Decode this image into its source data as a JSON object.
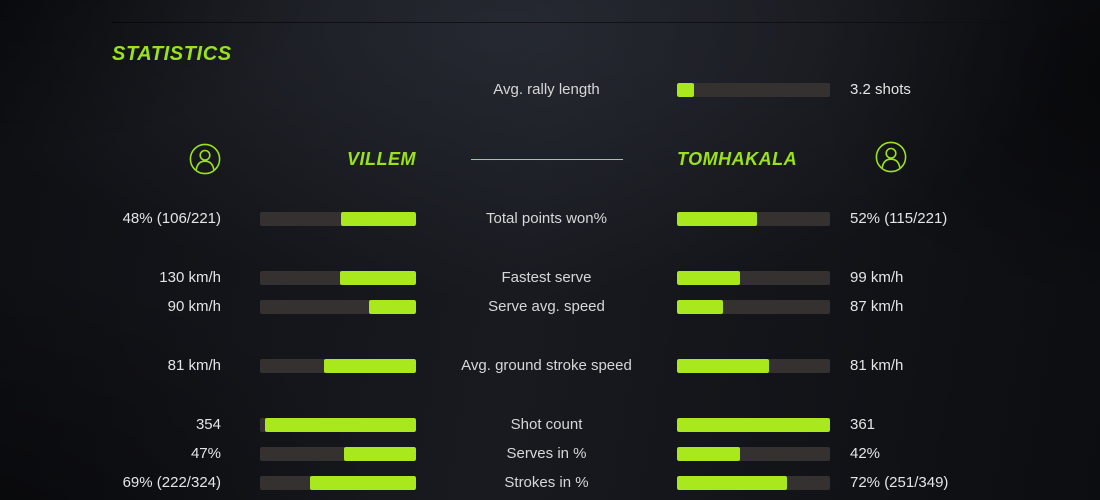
{
  "title": "STATISTICS",
  "colors": {
    "accent_text": "#9ae21a",
    "bar_fill": "#a9e81c",
    "bar_track": "#343130",
    "label_text": "#d6d7d8",
    "value_text": "#e4e5e6"
  },
  "rally": {
    "label": "Avg. rally length",
    "value": "3.2 shots",
    "fill_pct": 11
  },
  "players": {
    "left": {
      "name": "VILLEM",
      "icon": "user-avatar-icon"
    },
    "right": {
      "name": "TOMHAKALA",
      "icon": "user-avatar-icon"
    }
  },
  "stats": [
    {
      "label": "Total points won%",
      "left_value": "48% (106/221)",
      "right_value": "52% (115/221)",
      "left_fill_pct": 48,
      "right_fill_pct": 52,
      "gap_before": false
    },
    {
      "label": "Fastest serve",
      "left_value": "130 km/h",
      "right_value": "99 km/h",
      "left_fill_pct": 49,
      "right_fill_pct": 41,
      "gap_before": true
    },
    {
      "label": "Serve avg. speed",
      "left_value": "90 km/h",
      "right_value": "87 km/h",
      "left_fill_pct": 30,
      "right_fill_pct": 30,
      "gap_before": false
    },
    {
      "label": "Avg. ground stroke speed",
      "left_value": "81 km/h",
      "right_value": "81 km/h",
      "left_fill_pct": 59,
      "right_fill_pct": 60,
      "gap_before": true
    },
    {
      "label": "Shot count",
      "left_value": "354",
      "right_value": "361",
      "left_fill_pct": 97,
      "right_fill_pct": 100,
      "gap_before": true
    },
    {
      "label": "Serves in %",
      "left_value": "47%",
      "right_value": "42%",
      "left_fill_pct": 46,
      "right_fill_pct": 41,
      "gap_before": false
    },
    {
      "label": "Strokes in %",
      "left_value": "69% (222/324)",
      "right_value": "72% (251/349)",
      "left_fill_pct": 68,
      "right_fill_pct": 72,
      "gap_before": false
    }
  ],
  "chart_data": {
    "type": "bar",
    "title": "STATISTICS",
    "categories": [
      "Total points won%",
      "Fastest serve",
      "Serve avg. speed",
      "Avg. ground stroke speed",
      "Shot count",
      "Serves in %",
      "Strokes in %"
    ],
    "series": [
      {
        "name": "VILLEM",
        "values": [
          "48% (106/221)",
          "130 km/h",
          "90 km/h",
          "81 km/h",
          "354",
          "47%",
          "69% (222/324)"
        ]
      },
      {
        "name": "TOMHAKALA",
        "values": [
          "52% (115/221)",
          "99 km/h",
          "87 km/h",
          "81 km/h",
          "361",
          "42%",
          "72% (251/349)"
        ]
      }
    ],
    "shared": {
      "label": "Avg. rally length",
      "value": "3.2 shots"
    },
    "legend_position": "header",
    "grid": false
  }
}
